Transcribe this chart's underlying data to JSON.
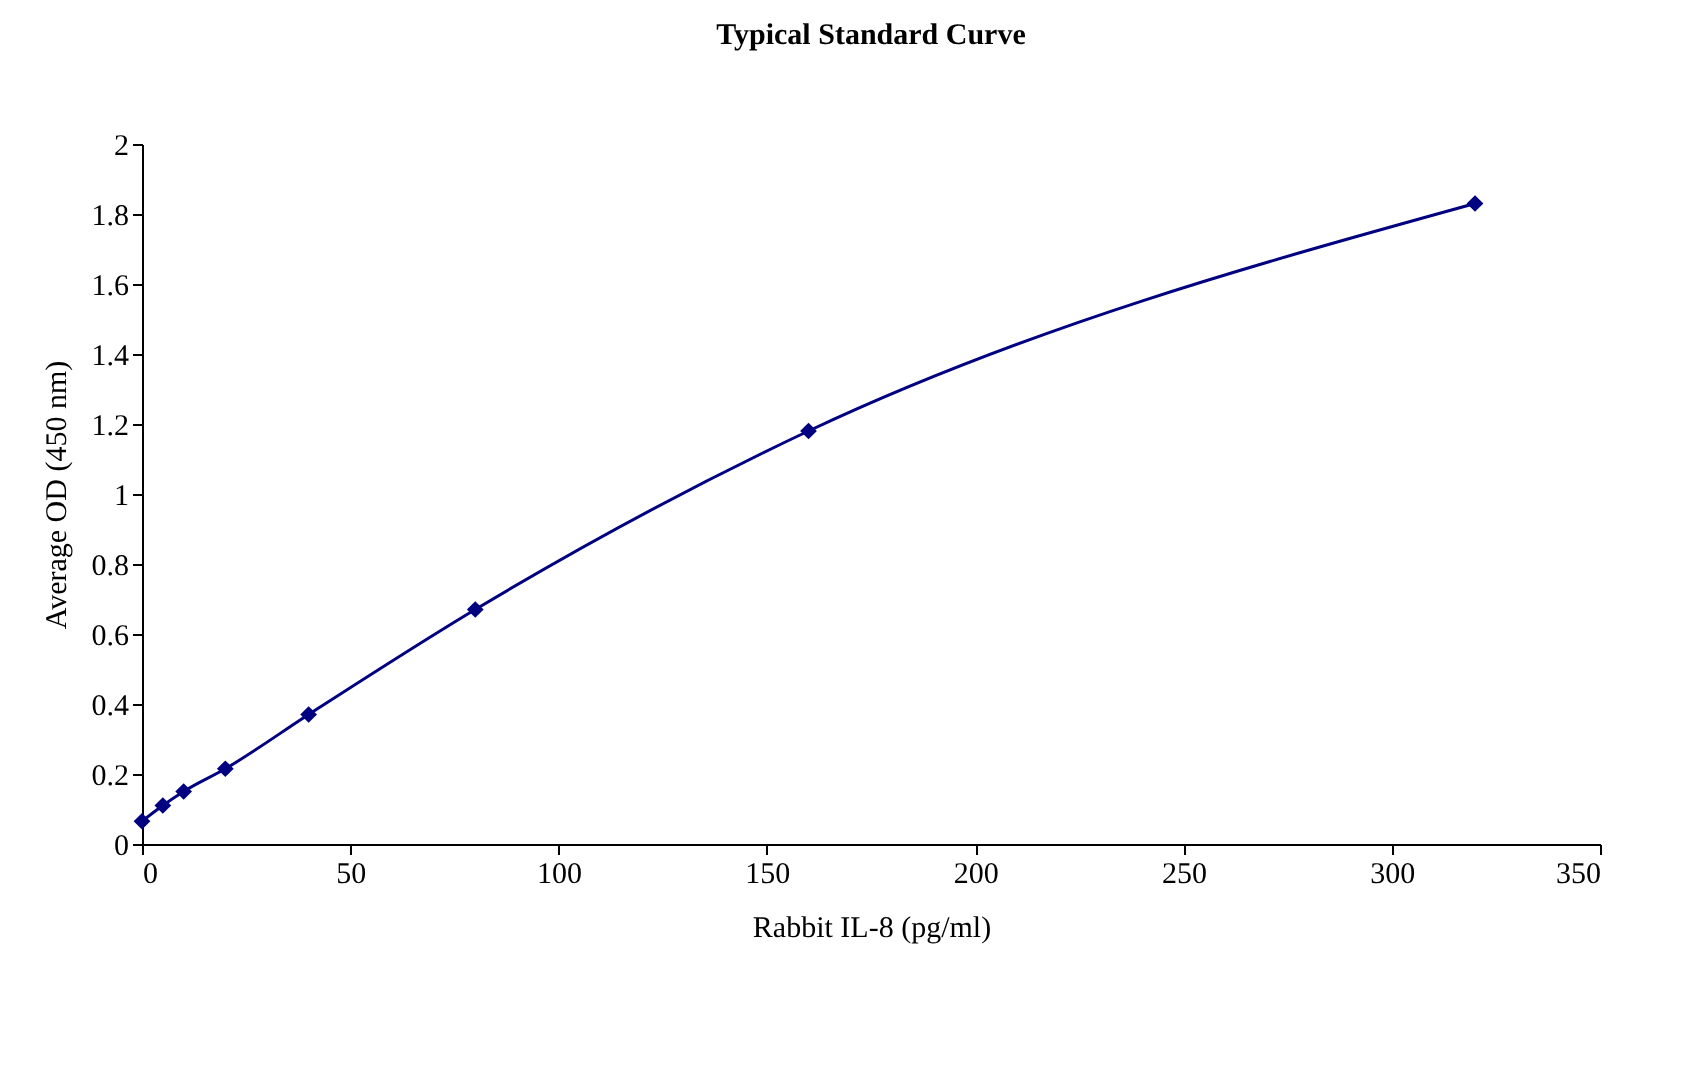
{
  "chart_data": {
    "type": "line",
    "title": "Typical Standard Curve",
    "xlabel": "Rabbit IL-8 (pg/ml)",
    "ylabel": "Average OD (450 nm)",
    "x": [
      0,
      5,
      10,
      20,
      40,
      80,
      160,
      320
    ],
    "series": [
      {
        "color": "#000080",
        "values": [
          0.065,
          0.11,
          0.15,
          0.215,
          0.37,
          0.67,
          1.18,
          1.83
        ]
      }
    ],
    "xlim": [
      0,
      350
    ],
    "xticks": [
      0,
      50,
      100,
      150,
      200,
      250,
      300,
      350
    ],
    "ylim": [
      0,
      2
    ],
    "yticks": [
      0,
      0.2,
      0.4,
      0.6,
      0.8,
      1,
      1.2,
      1.4,
      1.6,
      1.8,
      2
    ],
    "grid": false,
    "legend": false,
    "marker": "diamond",
    "line_style": "solid"
  }
}
